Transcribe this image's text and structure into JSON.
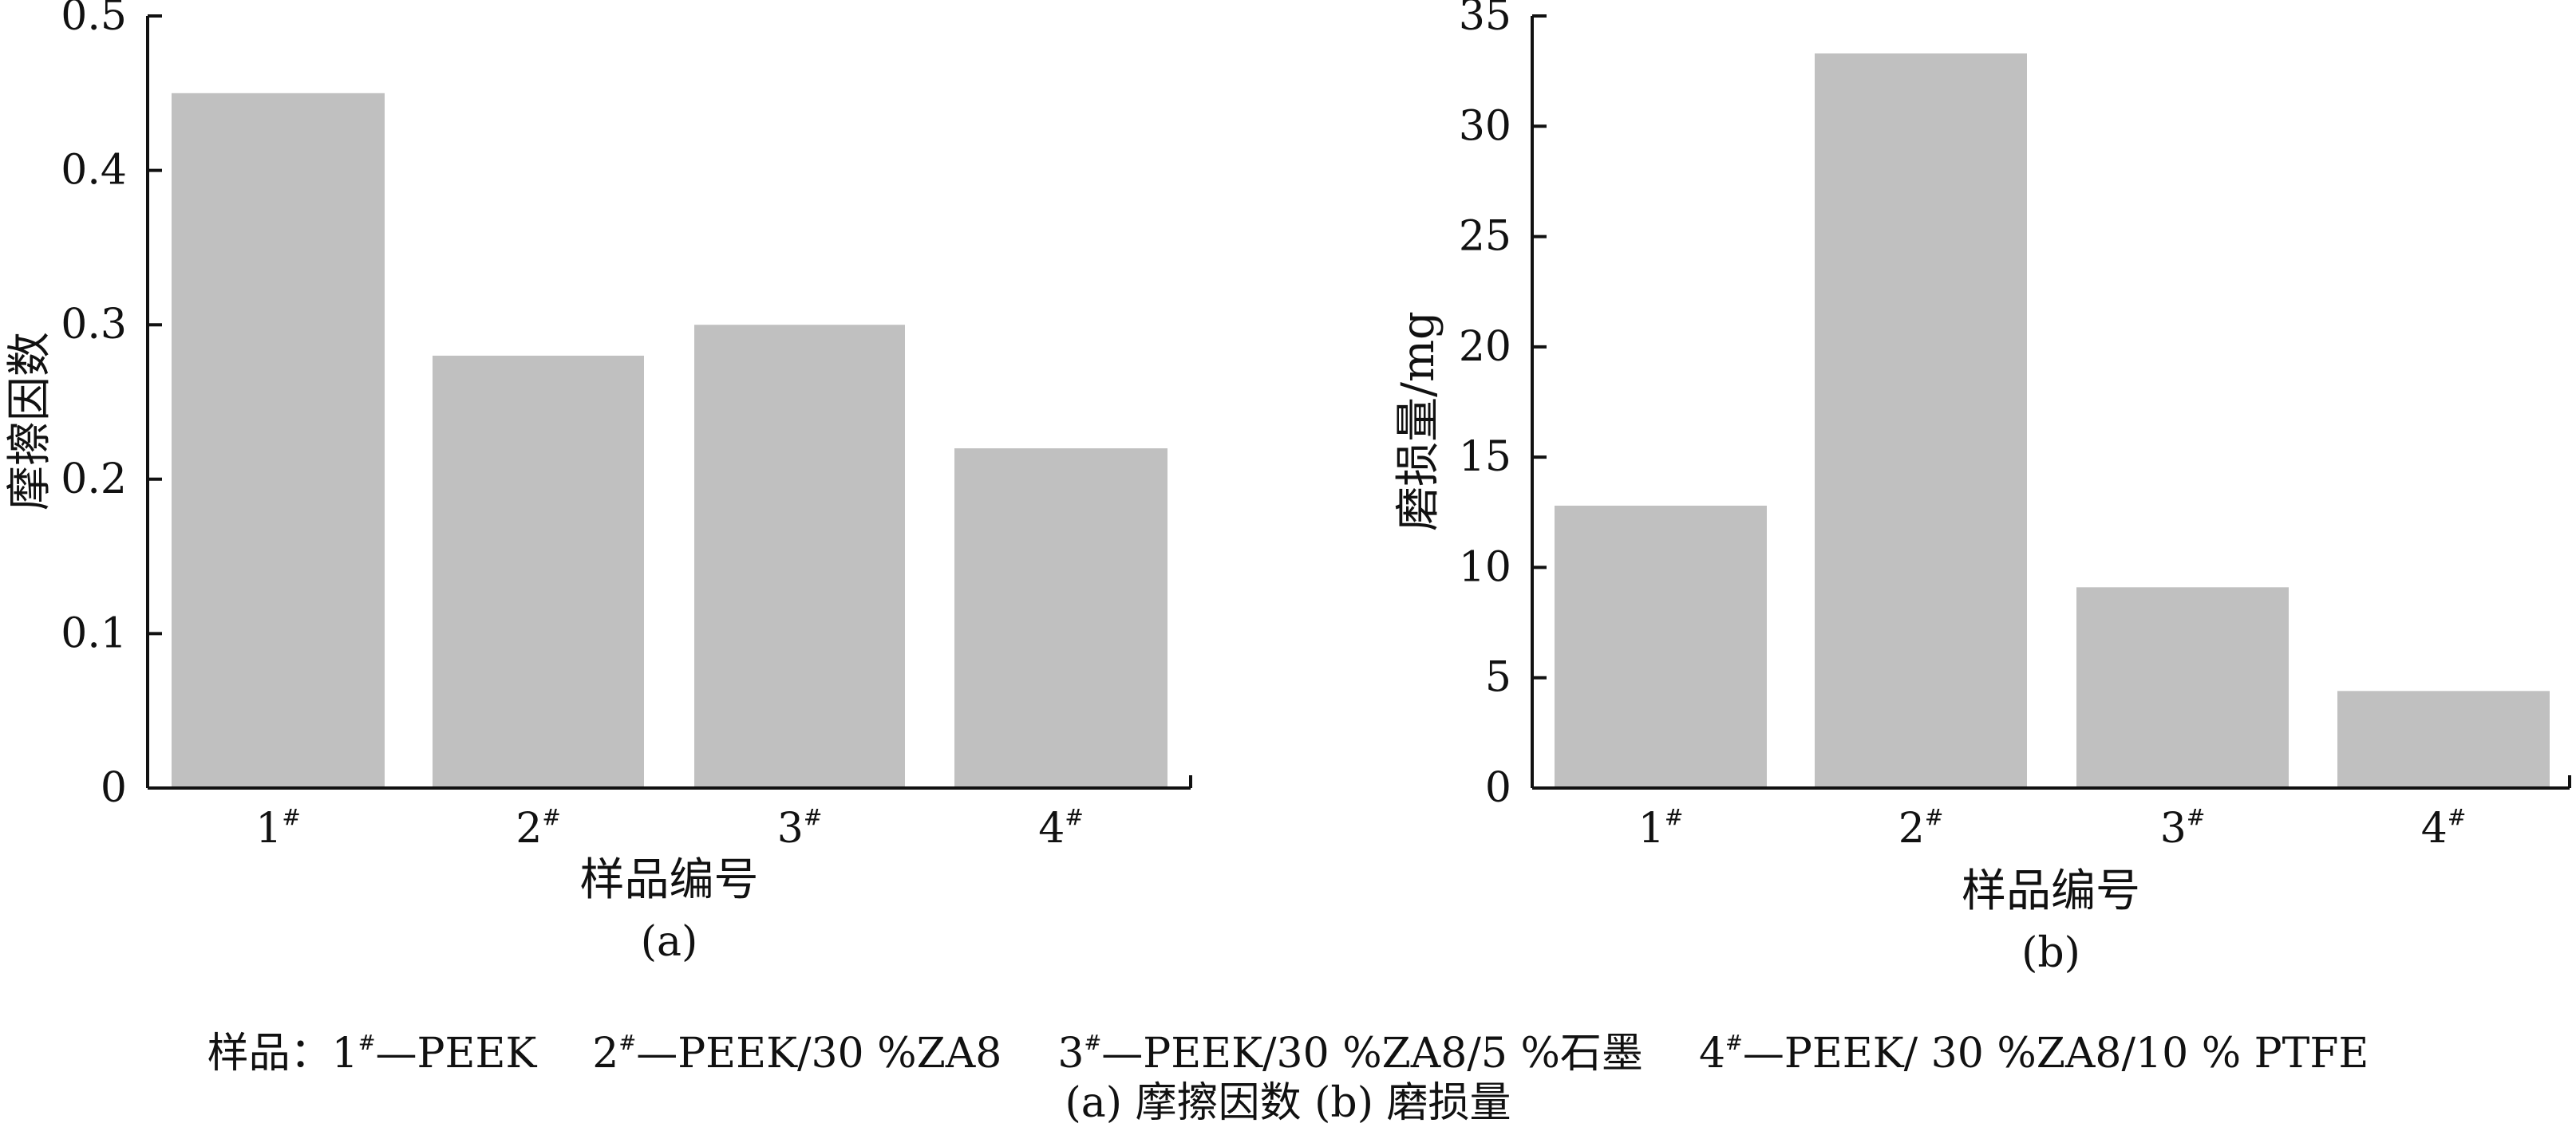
{
  "chart_data": [
    {
      "type": "bar",
      "panel_label": "(a)",
      "categories": [
        "1",
        "2",
        "3",
        "4"
      ],
      "category_superscript": "#",
      "values": [
        0.45,
        0.28,
        0.3,
        0.22
      ],
      "xlabel": "样品编号",
      "ylabel": "摩擦因数",
      "ylim": [
        0,
        0.5
      ],
      "yticks": [
        0,
        0.1,
        0.2,
        0.3,
        0.4,
        0.5
      ],
      "ytick_labels": [
        "0",
        "0.1",
        "0.2",
        "0.3",
        "0.4",
        "0.5"
      ],
      "grid": false,
      "bar_color": "#c0c0c0"
    },
    {
      "type": "bar",
      "panel_label": "(b)",
      "categories": [
        "1",
        "2",
        "3",
        "4"
      ],
      "category_superscript": "#",
      "values": [
        12.8,
        33.3,
        9.1,
        4.4
      ],
      "xlabel": "样品编号",
      "ylabel": "磨损量/mg",
      "ylim": [
        0,
        35
      ],
      "yticks": [
        0,
        5,
        10,
        15,
        20,
        25,
        30,
        35
      ],
      "ytick_labels": [
        "0",
        "5",
        "10",
        "15",
        "20",
        "25",
        "30",
        "35"
      ],
      "grid": false,
      "bar_color": "#c0c0c0"
    }
  ],
  "legend": {
    "prefix": "样品：",
    "items": [
      {
        "num": "1",
        "mark": "#",
        "text": "—PEEK"
      },
      {
        "num": "2",
        "mark": "#",
        "text": "—PEEK/30 %ZA8"
      },
      {
        "num": "3",
        "mark": "#",
        "text": "—PEEK/30 %ZA8/5 %石墨"
      },
      {
        "num": "4",
        "mark": "#",
        "text": "—PEEK/ 30 %ZA8/10 % PTFE"
      }
    ]
  },
  "subcaption": "(a) 摩擦因数  (b) 磨损量"
}
